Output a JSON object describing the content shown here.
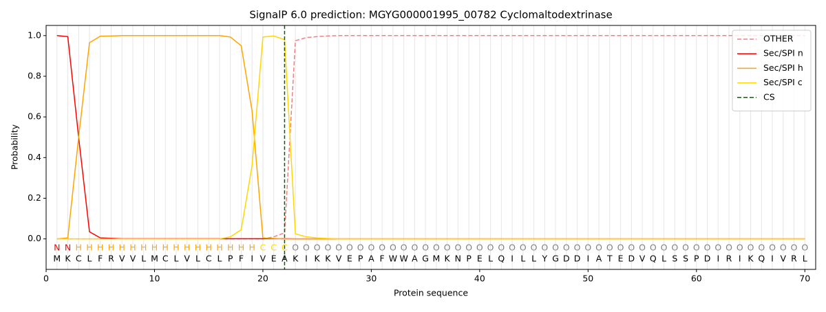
{
  "chart_data": {
    "type": "line",
    "title": "SignalP 6.0 prediction: MGYG000001995_00782 Cyclomaltodextrinase",
    "x_label": "Protein sequence",
    "y_label": "Probability",
    "xlim": [
      0,
      71
    ],
    "ylim": [
      -0.15,
      1.05
    ],
    "xticks": [
      0,
      10,
      20,
      30,
      40,
      50,
      60,
      70
    ],
    "yticks": [
      {
        "value": 0,
        "label": "0.0"
      },
      {
        "value": 0.2,
        "label": "0.2"
      },
      {
        "value": 0.4,
        "label": "0.4"
      },
      {
        "value": 0.6,
        "label": "0.6"
      },
      {
        "value": 0.8,
        "label": "0.8"
      },
      {
        "value": 1,
        "label": "1.0"
      }
    ],
    "legend_position": "upper right",
    "x": [
      1,
      2,
      3,
      4,
      5,
      6,
      7,
      8,
      9,
      10,
      11,
      12,
      13,
      14,
      15,
      16,
      17,
      18,
      19,
      20,
      21,
      22,
      23,
      24,
      25,
      26,
      27,
      28,
      29,
      30,
      31,
      32,
      33,
      34,
      35,
      36,
      37,
      38,
      39,
      40,
      41,
      42,
      43,
      44,
      45,
      46,
      47,
      48,
      49,
      50,
      51,
      52,
      53,
      54,
      55,
      56,
      57,
      58,
      59,
      60,
      61,
      62,
      63,
      64,
      65,
      66,
      67,
      68,
      69,
      70
    ],
    "sequence": [
      "M",
      "K",
      "C",
      "L",
      "F",
      "R",
      "V",
      "V",
      "L",
      "M",
      "C",
      "L",
      "V",
      "L",
      "C",
      "L",
      "P",
      "F",
      "I",
      "V",
      "E",
      "A",
      "K",
      "I",
      "K",
      "K",
      "V",
      "E",
      "P",
      "A",
      "F",
      "W",
      "W",
      "A",
      "G",
      "M",
      "K",
      "N",
      "P",
      "E",
      "L",
      "Q",
      "I",
      "L",
      "L",
      "Y",
      "G",
      "D",
      "D",
      "I",
      "A",
      "T",
      "E",
      "D",
      "V",
      "Q",
      "L",
      "S",
      "S",
      "P",
      "D",
      "I",
      "R",
      "I",
      "K",
      "Q",
      "I",
      "V",
      "R",
      "L"
    ],
    "region_labels": [
      "N",
      "N",
      "H",
      "H",
      "H",
      "H",
      "H",
      "H",
      "H",
      "H",
      "H",
      "H",
      "H",
      "H",
      "H",
      "H",
      "H",
      "H",
      "H",
      "C",
      "C",
      "C",
      "O",
      "O",
      "O",
      "O",
      "O",
      "O",
      "O",
      "O",
      "O",
      "O",
      "O",
      "O",
      "O",
      "O",
      "O",
      "O",
      "O",
      "O",
      "O",
      "O",
      "O",
      "O",
      "O",
      "O",
      "O",
      "O",
      "O",
      "O",
      "O",
      "O",
      "O",
      "O",
      "O",
      "O",
      "O",
      "O",
      "O",
      "O",
      "O",
      "O",
      "O",
      "O",
      "O",
      "O",
      "O",
      "O",
      "O",
      "O"
    ],
    "region_colors": {
      "N": "#ff0000",
      "H": "#ffa500",
      "C": "#ffd700",
      "O": "#808080"
    },
    "series": [
      {
        "name": "OTHER",
        "color": "#f08080",
        "dashed": true,
        "values": [
          0,
          0,
          0,
          0,
          0,
          0,
          0,
          0,
          0,
          0,
          0,
          0,
          0,
          0,
          0,
          0,
          0,
          0,
          0,
          0,
          0.01,
          0.03,
          0.975,
          0.99,
          0.995,
          0.998,
          1,
          1,
          1,
          1,
          1,
          1,
          1,
          1,
          1,
          1,
          1,
          1,
          1,
          1,
          1,
          1,
          1,
          1,
          1,
          1,
          1,
          1,
          1,
          1,
          1,
          1,
          1,
          1,
          1,
          1,
          1,
          1,
          1,
          1,
          1,
          1,
          1,
          1,
          1,
          1,
          1,
          1,
          1,
          1
        ]
      },
      {
        "name": "Sec/SPI n",
        "color": "#ff0000",
        "values": [
          1,
          0.995,
          0.5,
          0.035,
          0.005,
          0.003,
          0.001,
          0.001,
          0.001,
          0.001,
          0.001,
          0.001,
          0.001,
          0.001,
          0.001,
          0.001,
          0.001,
          0.001,
          0.001,
          0.001,
          0.001,
          0.001,
          0,
          0,
          0,
          0,
          0,
          0,
          0,
          0,
          0,
          0,
          0,
          0,
          0,
          0,
          0,
          0,
          0,
          0,
          0,
          0,
          0,
          0,
          0,
          0,
          0,
          0,
          0,
          0,
          0,
          0,
          0,
          0,
          0,
          0,
          0,
          0,
          0,
          0,
          0,
          0,
          0,
          0,
          0,
          0,
          0,
          0,
          0,
          0
        ]
      },
      {
        "name": "Sec/SPI h",
        "color": "#ffa500",
        "values": [
          0,
          0.005,
          0.5,
          0.965,
          0.997,
          0.998,
          1,
          1,
          1,
          1,
          1,
          1,
          1,
          1,
          1,
          1,
          0.993,
          0.95,
          0.63,
          0.005,
          0.002,
          0,
          0,
          0,
          0,
          0,
          0,
          0,
          0,
          0,
          0,
          0,
          0,
          0,
          0,
          0,
          0,
          0,
          0,
          0,
          0,
          0,
          0,
          0,
          0,
          0,
          0,
          0,
          0,
          0,
          0,
          0,
          0,
          0,
          0,
          0,
          0,
          0,
          0,
          0,
          0,
          0,
          0,
          0,
          0,
          0,
          0,
          0,
          0,
          0
        ]
      },
      {
        "name": "Sec/SPI c",
        "color": "#ffd700",
        "values": [
          0,
          0,
          0,
          0,
          0,
          0,
          0,
          0,
          0,
          0,
          0,
          0,
          0,
          0,
          0,
          0,
          0.01,
          0.045,
          0.36,
          0.993,
          0.998,
          0.98,
          0.025,
          0.01,
          0.005,
          0.002,
          0,
          0,
          0,
          0,
          0,
          0,
          0,
          0,
          0,
          0,
          0,
          0,
          0,
          0,
          0,
          0,
          0,
          0,
          0,
          0,
          0,
          0,
          0,
          0,
          0,
          0,
          0,
          0,
          0,
          0,
          0,
          0,
          0,
          0,
          0,
          0,
          0,
          0,
          0,
          0,
          0,
          0,
          0,
          0
        ]
      }
    ],
    "cs": {
      "name": "CS",
      "color": "#006400",
      "x": 22
    }
  }
}
